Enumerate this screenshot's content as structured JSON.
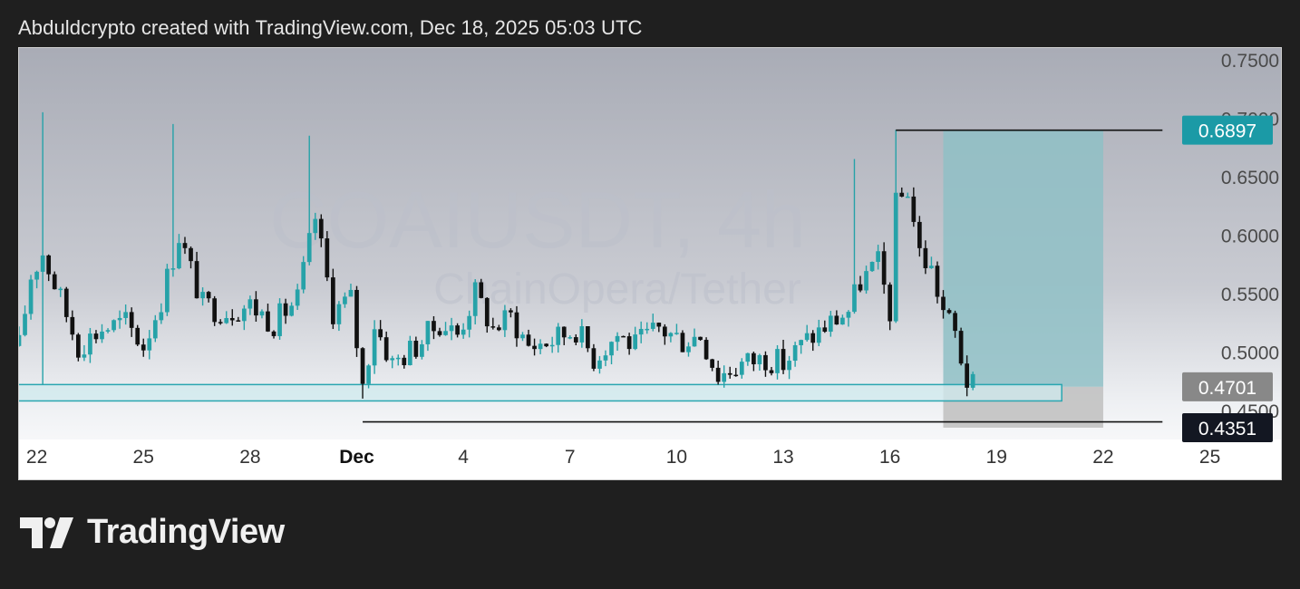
{
  "header": {
    "caption": "Abduldcrypto created with TradingView.com, Dec 18, 2025 05:03 UTC"
  },
  "brand": {
    "name": "TradingView",
    "icon": "tradingview-logo-icon"
  },
  "chart_data": {
    "type": "candlestick",
    "watermark": {
      "symbol": "COAIUSDT, 4h",
      "description": "ChainOpera/Tether"
    },
    "colors": {
      "up": "#26a2a8",
      "down": "#111111",
      "zone_fill": "#cfe9ee",
      "zone_border": "#2aa6b0",
      "target_fill": "#8fbfc6",
      "stop_fill": "#c4c4c4",
      "target_label_bg": "#1b9aa6",
      "entry_label_bg": "#888888",
      "stop_label_bg": "#131722"
    },
    "y_axis": {
      "range": [
        0.425,
        0.76
      ],
      "ticks": [
        "0.7500",
        "0.7000",
        "0.6500",
        "0.6000",
        "0.5500",
        "0.5000",
        "0.4500"
      ]
    },
    "x_axis": {
      "range": [
        "Nov 21 12:00",
        "Dec 27"
      ],
      "ticks": [
        {
          "label": "22",
          "date": "Nov 22"
        },
        {
          "label": "25",
          "date": "Nov 25"
        },
        {
          "label": "28",
          "date": "Nov 28"
        },
        {
          "label": "Dec",
          "date": "Dec 1",
          "bold": true
        },
        {
          "label": "4",
          "date": "Dec 4"
        },
        {
          "label": "7",
          "date": "Dec 7"
        },
        {
          "label": "10",
          "date": "Dec 10"
        },
        {
          "label": "13",
          "date": "Dec 13"
        },
        {
          "label": "16",
          "date": "Dec 16"
        },
        {
          "label": "19",
          "date": "Dec 19"
        },
        {
          "label": "22",
          "date": "Dec 22"
        },
        {
          "label": "25",
          "date": "Dec 25"
        }
      ]
    },
    "price_labels": [
      {
        "value": 0.6897,
        "text": "0.6897",
        "role": "target"
      },
      {
        "value": 0.4701,
        "text": "0.4701",
        "role": "entry"
      },
      {
        "value": 0.4351,
        "text": "0.4351",
        "role": "stop"
      }
    ],
    "demand_zone": {
      "top": 0.472,
      "bottom": 0.458,
      "start": "Nov 21 12:00",
      "end": "Dec 20 20:00"
    },
    "position": {
      "start": "Dec 17 12:00",
      "end": "Dec 22",
      "entry": 0.4701,
      "target": 0.6897,
      "stop": 0.4351
    },
    "horizontal_lines": [
      {
        "value": 0.6897,
        "start": "Dec 16 04:00",
        "end": "Dec 23 16:00"
      },
      {
        "value": 0.4401,
        "start": "Dec 1 04:00",
        "end": "Dec 23 16:00"
      }
    ],
    "session": {
      "start": "Nov 21 12:00",
      "end": "Dec 18 08:00",
      "bar_hours": 4
    },
    "close_path": [
      [
        "Nov 21 12:00",
        0.505
      ],
      [
        "Nov 21 20:00",
        0.565
      ],
      [
        "Nov 22 04:00",
        0.585
      ],
      [
        "Nov 22 16:00",
        0.545
      ],
      [
        "Nov 23 04:00",
        0.505
      ],
      [
        "Nov 23 20:00",
        0.52
      ],
      [
        "Nov 24 12:00",
        0.525
      ],
      [
        "Nov 25 00:00",
        0.505
      ],
      [
        "Nov 25 12:00",
        0.545
      ],
      [
        "Nov 26 00:00",
        0.6
      ],
      [
        "Nov 26 16:00",
        0.54
      ],
      [
        "Nov 27 08:00",
        0.535
      ],
      [
        "Nov 28 00:00",
        0.54
      ],
      [
        "Nov 28 16:00",
        0.525
      ],
      [
        "Nov 29 08:00",
        0.545
      ],
      [
        "Nov 29 20:00",
        0.615
      ],
      [
        "Nov 30 08:00",
        0.535
      ],
      [
        "Nov 30 20:00",
        0.545
      ],
      [
        "Dec 1 04:00",
        0.47
      ],
      [
        "Dec 1 12:00",
        0.525
      ],
      [
        "Dec 2 00:00",
        0.49
      ],
      [
        "Dec 2 16:00",
        0.505
      ],
      [
        "Dec 3 08:00",
        0.525
      ],
      [
        "Dec 3 20:00",
        0.515
      ],
      [
        "Dec 4 08:00",
        0.55
      ],
      [
        "Dec 4 20:00",
        0.52
      ],
      [
        "Dec 5 08:00",
        0.53
      ],
      [
        "Dec 5 20:00",
        0.505
      ],
      [
        "Dec 6 12:00",
        0.51
      ],
      [
        "Dec 7 04:00",
        0.52
      ],
      [
        "Dec 7 16:00",
        0.495
      ],
      [
        "Dec 8 08:00",
        0.515
      ],
      [
        "Dec 8 20:00",
        0.505
      ],
      [
        "Dec 9 12:00",
        0.52
      ],
      [
        "Dec 10 04:00",
        0.51
      ],
      [
        "Dec 10 16:00",
        0.515
      ],
      [
        "Dec 11 04:00",
        0.48
      ],
      [
        "Dec 11 20:00",
        0.49
      ],
      [
        "Dec 12 12:00",
        0.495
      ],
      [
        "Dec 13 00:00",
        0.49
      ],
      [
        "Dec 13 16:00",
        0.51
      ],
      [
        "Dec 14 08:00",
        0.525
      ],
      [
        "Dec 14 20:00",
        0.535
      ],
      [
        "Dec 15 04:00",
        0.56
      ],
      [
        "Dec 15 16:00",
        0.575
      ],
      [
        "Dec 16 00:00",
        0.535
      ],
      [
        "Dec 16 04:00",
        0.625
      ],
      [
        "Dec 16 12:00",
        0.64
      ],
      [
        "Dec 16 20:00",
        0.585
      ],
      [
        "Dec 17 04:00",
        0.57
      ],
      [
        "Dec 17 12:00",
        0.535
      ],
      [
        "Dec 17 20:00",
        0.515
      ],
      [
        "Dec 18 04:00",
        0.475
      ],
      [
        "Dec 18 08:00",
        0.4701
      ]
    ],
    "wick_spikes": [
      {
        "date": "Nov 22 04:00",
        "high": 0.705
      },
      {
        "date": "Nov 25 20:00",
        "high": 0.695
      },
      {
        "date": "Nov 29 16:00",
        "high": 0.685
      },
      {
        "date": "Dec 15 00:00",
        "high": 0.665
      },
      {
        "date": "Dec 16 04:00",
        "high": 0.69
      }
    ],
    "wick_dips": [
      {
        "date": "Nov 22 04:00",
        "low": 0.472
      },
      {
        "date": "Dec 1 04:00",
        "low": 0.46
      },
      {
        "date": "Dec 11 04:00",
        "low": 0.472
      },
      {
        "date": "Dec 18 04:00",
        "low": 0.462
      }
    ]
  }
}
